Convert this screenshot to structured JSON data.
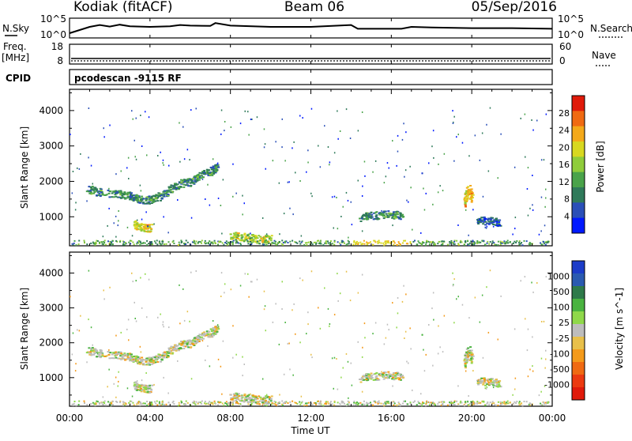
{
  "header": {
    "station": "Kodiak (fitACF)",
    "beam": "Beam 06",
    "date": "05/Sep/2016"
  },
  "noise_panel": {
    "left_label": "N.Sky",
    "left_ticks": [
      "10^5",
      "10^0"
    ],
    "right_label": "N.Search",
    "right_ticks": [
      "10^5",
      "10^0"
    ]
  },
  "freq_panel": {
    "left_label_1": "Freq.",
    "left_label_2": "[MHz]",
    "left_ticks": [
      "18",
      "8"
    ],
    "right_label": "Nave",
    "right_ticks": [
      "60",
      "0"
    ]
  },
  "cpid_panel": {
    "label": "CPID",
    "value": "pcodescan -9115 RF"
  },
  "colors": {
    "power_scale": [
      "#0019ff",
      "#2a4fb8",
      "#2f7a5a",
      "#4aa34a",
      "#8fcc3a",
      "#d8d820",
      "#f4a91a",
      "#f06a12",
      "#e01a0a"
    ],
    "velocity_scale": [
      "#1c3cc8",
      "#2a5ab0",
      "#2e7a4a",
      "#4ab340",
      "#8fd84a",
      "#bdbdbd",
      "#e8c04a",
      "#f49a1a",
      "#f06a12",
      "#ec3a10",
      "#e01a0a"
    ]
  },
  "chart_data": [
    {
      "type": "line",
      "title": "N.Sky / N.Search",
      "x": [
        "00:00",
        "01:00",
        "01:30",
        "02:00",
        "02:30",
        "03:00",
        "04:00",
        "05:00",
        "05:30",
        "06:00",
        "07:00",
        "07:15",
        "08:00",
        "10:00",
        "12:00",
        "14:00",
        "14:20",
        "16:30",
        "17:00",
        "18:00",
        "20:00",
        "22:00",
        "24:00"
      ],
      "series": [
        {
          "values": [
            1.0,
            3.0,
            3.6,
            3.1,
            3.7,
            3.2,
            3.0,
            3.2,
            3.6,
            3.4,
            3.3,
            4.2,
            3.4,
            3.0,
            3.0,
            3.6,
            2.4,
            2.4,
            3.0,
            2.8,
            2.6,
            2.6,
            2.4
          ]
        }
      ],
      "ylim": [
        0,
        5
      ],
      "ytick_labels": [
        "10^0",
        "10^5"
      ]
    },
    {
      "type": "line",
      "title": "Freq. / Nave",
      "x": [
        "00:00",
        "24:00"
      ],
      "series": [
        {
          "values": [
            10.5,
            10.5
          ]
        },
        {
          "values": [
            9.0,
            9.0
          ]
        }
      ],
      "ylim": [
        8,
        18
      ]
    },
    {
      "type": "scatter",
      "x_ticks": [
        "00:00",
        "04:00",
        "08:00",
        "12:00",
        "16:00",
        "20:00",
        "00:00"
      ],
      "xlabel": "Time UT",
      "ylabel": "Slant Range [km]",
      "y_ticks": [
        1000,
        2000,
        3000,
        4000
      ],
      "ylim": [
        180,
        4600
      ],
      "xlim_hours": [
        0,
        24
      ],
      "colorbar": {
        "label": "Power [dB]",
        "ticks": [
          4,
          8,
          12,
          16,
          20,
          24,
          28
        ],
        "range": [
          0,
          32
        ]
      },
      "features": [
        {
          "name": "arc",
          "points": [
            [
              0.8,
              1800
            ],
            [
              1.5,
              1700
            ],
            [
              2.5,
              1650
            ],
            [
              3.0,
              1600
            ],
            [
              3.5,
              1500
            ],
            [
              4.0,
              1500
            ],
            [
              4.5,
              1600
            ],
            [
              5.0,
              1800
            ],
            [
              5.5,
              1950
            ],
            [
              6.0,
              2000
            ],
            [
              6.5,
              2200
            ],
            [
              7.0,
              2300
            ],
            [
              7.3,
              2400
            ]
          ],
          "power": 10
        },
        {
          "name": "blob-04h",
          "points": [
            [
              3.2,
              800
            ],
            [
              3.6,
              700
            ],
            [
              4.0,
              700
            ]
          ],
          "power": 20
        },
        {
          "name": "ground-scatter",
          "points": [
            [
              8.0,
              500
            ],
            [
              8.7,
              430
            ],
            [
              9.3,
              400
            ],
            [
              10.0,
              380
            ]
          ],
          "power": 18
        },
        {
          "name": "band-16h",
          "points": [
            [
              14.4,
              1000
            ],
            [
              15.0,
              1050
            ],
            [
              15.8,
              1080
            ],
            [
              16.5,
              1050
            ]
          ],
          "power": 10
        },
        {
          "name": "streak-20h",
          "points": [
            [
              19.6,
              1400
            ],
            [
              19.8,
              1800
            ],
            [
              20.0,
              1500
            ]
          ],
          "power": 22
        },
        {
          "name": "band-21h",
          "points": [
            [
              20.2,
              900
            ],
            [
              20.8,
              900
            ],
            [
              21.4,
              850
            ]
          ],
          "power": 6
        }
      ]
    },
    {
      "type": "scatter",
      "x_ticks": [
        "00:00",
        "04:00",
        "08:00",
        "12:00",
        "16:00",
        "20:00",
        "00:00"
      ],
      "xlabel": "Time UT",
      "ylabel": "Slant Range [km]",
      "y_ticks": [
        1000,
        2000,
        3000,
        4000
      ],
      "ylim": [
        180,
        4600
      ],
      "xlim_hours": [
        0,
        24
      ],
      "colorbar": {
        "label": "Velocity [m s^-1]",
        "ticks": [
          1000,
          500,
          100,
          25,
          -25,
          -100,
          -500,
          -1000
        ]
      }
    }
  ]
}
